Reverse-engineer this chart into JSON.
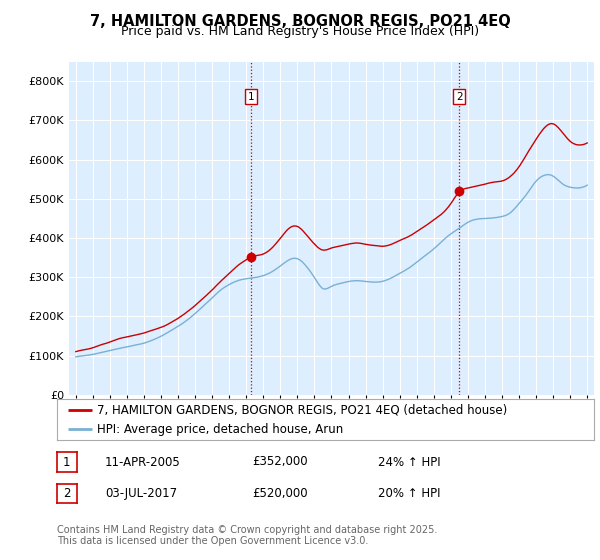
{
  "title": "7, HAMILTON GARDENS, BOGNOR REGIS, PO21 4EQ",
  "subtitle": "Price paid vs. HM Land Registry's House Price Index (HPI)",
  "ylim": [
    0,
    850000
  ],
  "yticks": [
    0,
    100000,
    200000,
    300000,
    400000,
    500000,
    600000,
    700000,
    800000
  ],
  "ytick_labels": [
    "£0",
    "£100K",
    "£200K",
    "£300K",
    "£400K",
    "£500K",
    "£600K",
    "£700K",
    "£800K"
  ],
  "xlim_start": 1994.6,
  "xlim_end": 2025.4,
  "background_color": "#ffffff",
  "plot_bg_color": "#ddeeff",
  "grid_color": "#ffffff",
  "line1_color": "#cc0000",
  "line2_color": "#7ab0d4",
  "vline_color": "#cc0000",
  "transaction1_x": 2005.28,
  "transaction1_y": 352000,
  "transaction2_x": 2017.5,
  "transaction2_y": 520000,
  "legend_line1": "7, HAMILTON GARDENS, BOGNOR REGIS, PO21 4EQ (detached house)",
  "legend_line2": "HPI: Average price, detached house, Arun",
  "table_entries": [
    {
      "num": "1",
      "date": "11-APR-2005",
      "price": "£352,000",
      "change": "24% ↑ HPI"
    },
    {
      "num": "2",
      "date": "03-JUL-2017",
      "price": "£520,000",
      "change": "20% ↑ HPI"
    }
  ],
  "footer": "Contains HM Land Registry data © Crown copyright and database right 2025.\nThis data is licensed under the Open Government Licence v3.0.",
  "title_fontsize": 10.5,
  "subtitle_fontsize": 9,
  "tick_fontsize": 8,
  "legend_fontsize": 8.5,
  "table_fontsize": 8.5,
  "footer_fontsize": 7,
  "red_data": [
    [
      1995.0,
      110000
    ],
    [
      1995.5,
      115000
    ],
    [
      1996.0,
      120000
    ],
    [
      1996.5,
      128000
    ],
    [
      1997.0,
      135000
    ],
    [
      1997.5,
      143000
    ],
    [
      1998.0,
      148000
    ],
    [
      1998.5,
      153000
    ],
    [
      1999.0,
      158000
    ],
    [
      1999.5,
      165000
    ],
    [
      2000.0,
      172000
    ],
    [
      2000.5,
      182000
    ],
    [
      2001.0,
      195000
    ],
    [
      2001.5,
      210000
    ],
    [
      2002.0,
      228000
    ],
    [
      2002.5,
      248000
    ],
    [
      2003.0,
      268000
    ],
    [
      2003.5,
      290000
    ],
    [
      2004.0,
      310000
    ],
    [
      2004.5,
      330000
    ],
    [
      2005.0,
      345000
    ],
    [
      2005.28,
      352000
    ],
    [
      2005.5,
      355000
    ],
    [
      2006.0,
      360000
    ],
    [
      2006.5,
      375000
    ],
    [
      2007.0,
      400000
    ],
    [
      2007.5,
      425000
    ],
    [
      2008.0,
      430000
    ],
    [
      2008.5,
      410000
    ],
    [
      2009.0,
      385000
    ],
    [
      2009.5,
      370000
    ],
    [
      2010.0,
      375000
    ],
    [
      2010.5,
      380000
    ],
    [
      2011.0,
      385000
    ],
    [
      2011.5,
      388000
    ],
    [
      2012.0,
      385000
    ],
    [
      2012.5,
      382000
    ],
    [
      2013.0,
      380000
    ],
    [
      2013.5,
      385000
    ],
    [
      2014.0,
      395000
    ],
    [
      2014.5,
      405000
    ],
    [
      2015.0,
      418000
    ],
    [
      2015.5,
      432000
    ],
    [
      2016.0,
      448000
    ],
    [
      2016.5,
      465000
    ],
    [
      2017.0,
      490000
    ],
    [
      2017.5,
      520000
    ],
    [
      2018.0,
      530000
    ],
    [
      2018.5,
      535000
    ],
    [
      2019.0,
      540000
    ],
    [
      2019.5,
      545000
    ],
    [
      2020.0,
      548000
    ],
    [
      2020.5,
      560000
    ],
    [
      2021.0,
      585000
    ],
    [
      2021.5,
      620000
    ],
    [
      2022.0,
      655000
    ],
    [
      2022.5,
      685000
    ],
    [
      2023.0,
      695000
    ],
    [
      2023.5,
      675000
    ],
    [
      2024.0,
      650000
    ],
    [
      2024.5,
      640000
    ],
    [
      2025.0,
      645000
    ]
  ],
  "blue_data": [
    [
      1995.0,
      97000
    ],
    [
      1995.5,
      100000
    ],
    [
      1996.0,
      103000
    ],
    [
      1996.5,
      108000
    ],
    [
      1997.0,
      113000
    ],
    [
      1997.5,
      118000
    ],
    [
      1998.0,
      122000
    ],
    [
      1998.5,
      127000
    ],
    [
      1999.0,
      132000
    ],
    [
      1999.5,
      140000
    ],
    [
      2000.0,
      150000
    ],
    [
      2000.5,
      162000
    ],
    [
      2001.0,
      175000
    ],
    [
      2001.5,
      190000
    ],
    [
      2002.0,
      208000
    ],
    [
      2002.5,
      228000
    ],
    [
      2003.0,
      248000
    ],
    [
      2003.5,
      268000
    ],
    [
      2004.0,
      282000
    ],
    [
      2004.5,
      292000
    ],
    [
      2005.0,
      297000
    ],
    [
      2005.5,
      300000
    ],
    [
      2006.0,
      305000
    ],
    [
      2006.5,
      315000
    ],
    [
      2007.0,
      330000
    ],
    [
      2007.5,
      345000
    ],
    [
      2008.0,
      348000
    ],
    [
      2008.5,
      330000
    ],
    [
      2009.0,
      300000
    ],
    [
      2009.5,
      272000
    ],
    [
      2010.0,
      278000
    ],
    [
      2010.5,
      285000
    ],
    [
      2011.0,
      290000
    ],
    [
      2011.5,
      292000
    ],
    [
      2012.0,
      290000
    ],
    [
      2012.5,
      288000
    ],
    [
      2013.0,
      290000
    ],
    [
      2013.5,
      298000
    ],
    [
      2014.0,
      310000
    ],
    [
      2014.5,
      322000
    ],
    [
      2015.0,
      338000
    ],
    [
      2015.5,
      355000
    ],
    [
      2016.0,
      372000
    ],
    [
      2016.5,
      392000
    ],
    [
      2017.0,
      410000
    ],
    [
      2017.5,
      425000
    ],
    [
      2018.0,
      440000
    ],
    [
      2018.5,
      448000
    ],
    [
      2019.0,
      450000
    ],
    [
      2019.5,
      452000
    ],
    [
      2020.0,
      455000
    ],
    [
      2020.5,
      465000
    ],
    [
      2021.0,
      488000
    ],
    [
      2021.5,
      515000
    ],
    [
      2022.0,
      545000
    ],
    [
      2022.5,
      560000
    ],
    [
      2023.0,
      558000
    ],
    [
      2023.5,
      540000
    ],
    [
      2024.0,
      530000
    ],
    [
      2024.5,
      528000
    ],
    [
      2025.0,
      535000
    ]
  ]
}
